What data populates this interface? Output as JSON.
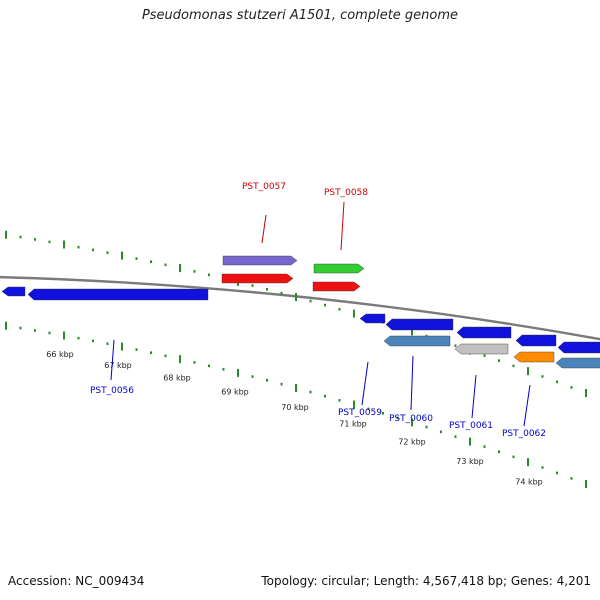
{
  "title": "Pseudomonas stutzeri A1501, complete genome",
  "footer": {
    "accession": "Accession: NC_009434",
    "topology": "Topology: circular; Length: 4,567,418 bp; Genes: 4,201"
  },
  "colors": {
    "backbone": "#7a7a7a",
    "tick": "#2a8a2a",
    "label_forward": "#cc0000",
    "label_reverse": "#0000cc"
  },
  "scale_labels": [
    "66 kbp",
    "67 kbp",
    "68 kbp",
    "69 kbp",
    "70 kbp",
    "71 kbp",
    "72 kbp",
    "73 kbp",
    "74 kbp"
  ],
  "gene_labels": [
    {
      "text": "PST_0057",
      "strand": "forward"
    },
    {
      "text": "PST_0058",
      "strand": "forward"
    },
    {
      "text": "PST_0056",
      "strand": "reverse"
    },
    {
      "text": "PST_0059",
      "strand": "reverse"
    },
    {
      "text": "PST_0060",
      "strand": "reverse"
    },
    {
      "text": "PST_0061",
      "strand": "reverse"
    },
    {
      "text": "PST_0062",
      "strand": "reverse"
    }
  ],
  "genes": [
    {
      "strand": "forward",
      "ring": "inner",
      "color": "#ee1111",
      "label": "PST_0057"
    },
    {
      "strand": "forward",
      "ring": "outer",
      "color": "#7766cc",
      "label": "PST_0057"
    },
    {
      "strand": "forward",
      "ring": "inner",
      "color": "#ee1111",
      "label": "PST_0058"
    },
    {
      "strand": "forward",
      "ring": "outer",
      "color": "#33cc33",
      "label": "PST_0058"
    },
    {
      "strand": "reverse",
      "ring": "inner",
      "color": "#1111dd",
      "label": ""
    },
    {
      "strand": "reverse",
      "ring": "inner",
      "color": "#1111dd",
      "label": "PST_0056"
    },
    {
      "strand": "reverse",
      "ring": "inner",
      "color": "#1111dd",
      "label": "PST_0059"
    },
    {
      "strand": "reverse",
      "ring": "inner",
      "color": "#1111dd",
      "label": "PST_0060"
    },
    {
      "strand": "reverse",
      "ring": "outer",
      "color": "#4a84bb",
      "label": "PST_0060"
    },
    {
      "strand": "reverse",
      "ring": "inner",
      "color": "#1111dd",
      "label": "PST_0061"
    },
    {
      "strand": "reverse",
      "ring": "outer",
      "color": "#c0c0c0",
      "label": "PST_0061"
    },
    {
      "strand": "reverse",
      "ring": "inner",
      "color": "#1111dd",
      "label": "PST_0062"
    },
    {
      "strand": "reverse",
      "ring": "outer",
      "color": "#ff8c00",
      "label": "PST_0062"
    },
    {
      "strand": "reverse",
      "ring": "inner",
      "color": "#1111dd",
      "label": ""
    },
    {
      "strand": "reverse",
      "ring": "outer",
      "color": "#4a84bb",
      "label": ""
    }
  ]
}
